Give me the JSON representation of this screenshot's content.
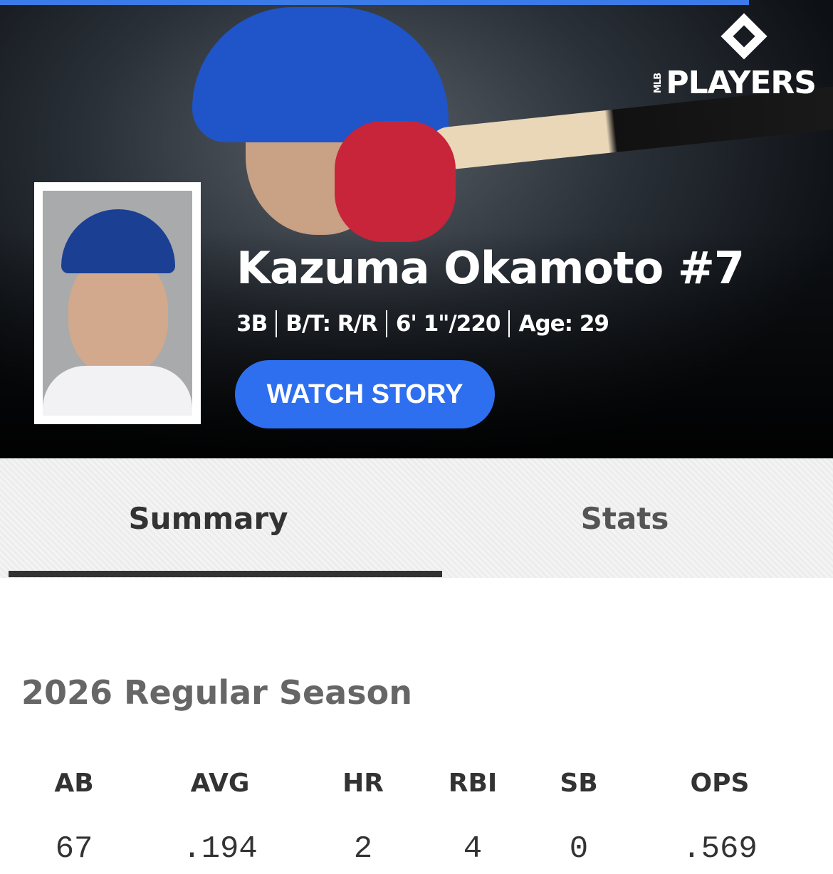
{
  "brand": {
    "logo_text": "PLAYERS",
    "logo_prefix": "MLB",
    "accent_color": "#2e6ff0"
  },
  "player": {
    "name": "Kazuma Okamoto #7",
    "position": "3B",
    "bats_throws": "B/T: R/R",
    "height_weight": "6' 1\"/220",
    "age": "Age: 29"
  },
  "watch_story_label": "WATCH STORY",
  "tabs": [
    {
      "label": "Summary",
      "active": true
    },
    {
      "label": "Stats",
      "active": false
    }
  ],
  "season": {
    "title": "2026 Regular Season",
    "stats": [
      {
        "label": "AB",
        "value": "67"
      },
      {
        "label": "AVG",
        "value": ".194"
      },
      {
        "label": "HR",
        "value": "2"
      },
      {
        "label": "RBI",
        "value": "4"
      },
      {
        "label": "SB",
        "value": "0"
      },
      {
        "label": "OPS",
        "value": ".569"
      }
    ]
  }
}
